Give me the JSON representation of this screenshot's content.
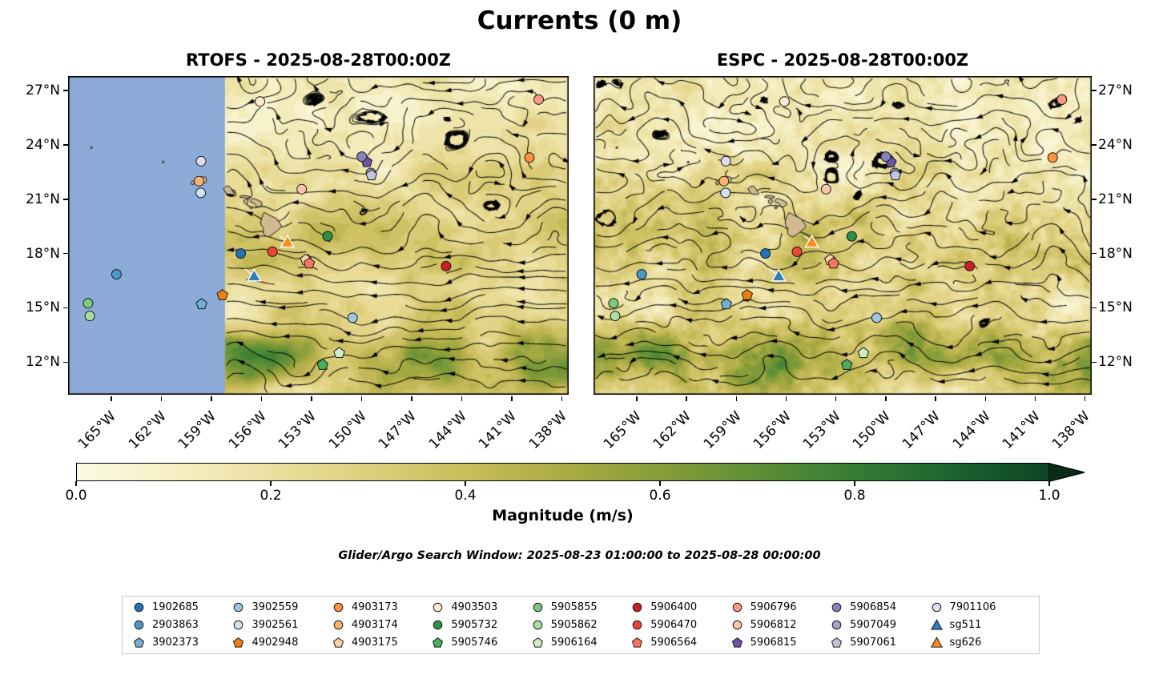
{
  "chart_data": {
    "type": "heatmap",
    "overlay": "streamlines",
    "title": "Currents (0 m)",
    "subplots": [
      {
        "model": "RTOFS",
        "title": "RTOFS - 2025-08-28T00:00Z",
        "masked_region_color": "#8cabd9",
        "masked_west_of_lon": -158.2
      },
      {
        "model": "ESPC",
        "title": "ESPC - 2025-08-28T00:00Z"
      }
    ],
    "axes": {
      "lon_tick_labels": [
        "165°W",
        "162°W",
        "159°W",
        "156°W",
        "153°W",
        "150°W",
        "147°W",
        "144°W",
        "141°W",
        "138°W"
      ],
      "lon_tick_values": [
        -165,
        -162,
        -159,
        -156,
        -153,
        -150,
        -147,
        -144,
        -141,
        -138
      ],
      "lat_tick_labels": [
        "27°N",
        "24°N",
        "21°N",
        "18°N",
        "15°N",
        "12°N"
      ],
      "lat_tick_values": [
        27,
        24,
        21,
        18,
        15,
        12
      ],
      "lon_range": [
        -167.6,
        -137.6
      ],
      "lat_range": [
        10.2,
        27.8
      ],
      "grid": false
    },
    "colorbar": {
      "label": "Magnitude (m/s)",
      "tick_labels": [
        "0.0",
        "0.2",
        "0.4",
        "0.6",
        "0.8",
        "1.0"
      ],
      "tick_values": [
        0,
        0.2,
        0.4,
        0.6,
        0.8,
        1.0
      ],
      "range": [
        0,
        1
      ],
      "extend": "max",
      "extend_color": "#082c18",
      "stops": [
        {
          "pos": 0.0,
          "color": "#fdfae3"
        },
        {
          "pos": 0.1,
          "color": "#f6efc4"
        },
        {
          "pos": 0.2,
          "color": "#ece0a0"
        },
        {
          "pos": 0.3,
          "color": "#decf7d"
        },
        {
          "pos": 0.4,
          "color": "#cabd5c"
        },
        {
          "pos": 0.5,
          "color": "#acab45"
        },
        {
          "pos": 0.6,
          "color": "#869d39"
        },
        {
          "pos": 0.7,
          "color": "#5d8f36"
        },
        {
          "pos": 0.8,
          "color": "#357d34"
        },
        {
          "pos": 0.9,
          "color": "#1c652f"
        },
        {
          "pos": 1.0,
          "color": "#0e4525"
        }
      ]
    },
    "annotation": "Glider/Argo Search Window: 2025-08-23 01:00:00 to 2025-08-28 00:00:00",
    "land_color": "#d3b990",
    "platforms": [
      {
        "id": "1902685",
        "marker": "circle",
        "color": "#2273b6",
        "lon": -157.25,
        "lat": 18.0
      },
      {
        "id": "2903863",
        "marker": "circle",
        "color": "#4a97c9",
        "lon": -164.7,
        "lat": 16.85
      },
      {
        "id": "3902373",
        "marker": "pentagon",
        "color": "#74aed3",
        "lon": -159.6,
        "lat": 15.2
      },
      {
        "id": "3902559",
        "marker": "circle",
        "color": "#9fc6e0",
        "lon": -150.55,
        "lat": 14.45
      },
      {
        "id": "3902561",
        "marker": "circle",
        "color": "#cfe3f0",
        "lon": -159.65,
        "lat": 21.35
      },
      {
        "id": "4902948",
        "marker": "pentagon",
        "color": "#f07f12",
        "lon": -158.35,
        "lat": 15.7
      },
      {
        "id": "4903173",
        "marker": "circle",
        "color": "#fd9140",
        "lon": -139.95,
        "lat": 23.3
      },
      {
        "id": "4903174",
        "marker": "circle",
        "color": "#fdb56e",
        "lon": -159.75,
        "lat": 22.0
      },
      {
        "id": "4903175",
        "marker": "pentagon",
        "color": "#fdd3a5",
        "lon": -153.35,
        "lat": 17.65
      },
      {
        "id": "4903503",
        "marker": "circle",
        "color": "#fee8d1",
        "lon": -156.1,
        "lat": 26.4
      },
      {
        "id": "5905732",
        "marker": "circle",
        "color": "#2d9048",
        "lon": -152.05,
        "lat": 18.95
      },
      {
        "id": "5905746",
        "marker": "pentagon",
        "color": "#48ae60",
        "lon": -152.35,
        "lat": 11.85
      },
      {
        "id": "5905855",
        "marker": "circle",
        "color": "#7cc87f",
        "lon": -166.4,
        "lat": 15.25
      },
      {
        "id": "5905862",
        "marker": "circle",
        "color": "#a9dda1",
        "lon": -166.3,
        "lat": 14.55
      },
      {
        "id": "5906164",
        "marker": "pentagon",
        "color": "#cdecc5",
        "lon": -151.35,
        "lat": 12.5
      },
      {
        "id": "5906400",
        "marker": "circle",
        "color": "#c81f25",
        "lon": -144.95,
        "lat": 17.3
      },
      {
        "id": "5906470",
        "marker": "circle",
        "color": "#ee4437",
        "lon": -155.35,
        "lat": 18.1
      },
      {
        "id": "5906564",
        "marker": "pentagon",
        "color": "#f97662",
        "lon": -153.15,
        "lat": 17.45
      },
      {
        "id": "5906796",
        "marker": "circle",
        "color": "#fc9b84",
        "lon": -139.4,
        "lat": 26.5
      },
      {
        "id": "5906812",
        "marker": "circle",
        "color": "#fcc3ab",
        "lon": -153.6,
        "lat": 21.55
      },
      {
        "id": "5906815",
        "marker": "pentagon",
        "color": "#6c55a6",
        "lon": -149.7,
        "lat": 23.05
      },
      {
        "id": "5906854",
        "marker": "circle",
        "color": "#8583bd",
        "lon": -150.0,
        "lat": 23.35
      },
      {
        "id": "5907049",
        "marker": "circle",
        "color": "#a5a1cd",
        "lon": -149.45,
        "lat": 22.45
      },
      {
        "id": "5907061",
        "marker": "pentagon",
        "color": "#c3c3de",
        "lon": -149.42,
        "lat": 22.32
      },
      {
        "id": "7901106",
        "marker": "circle",
        "color": "#e2d9ef",
        "lon": -159.63,
        "lat": 23.1
      },
      {
        "id": "sg511",
        "marker": "triangle",
        "color": "#2e7ebc",
        "lon": -156.45,
        "lat": 16.75
      },
      {
        "id": "sg626",
        "marker": "triangle",
        "color": "#fd8b1a",
        "lon": -154.45,
        "lat": 18.62
      }
    ]
  }
}
